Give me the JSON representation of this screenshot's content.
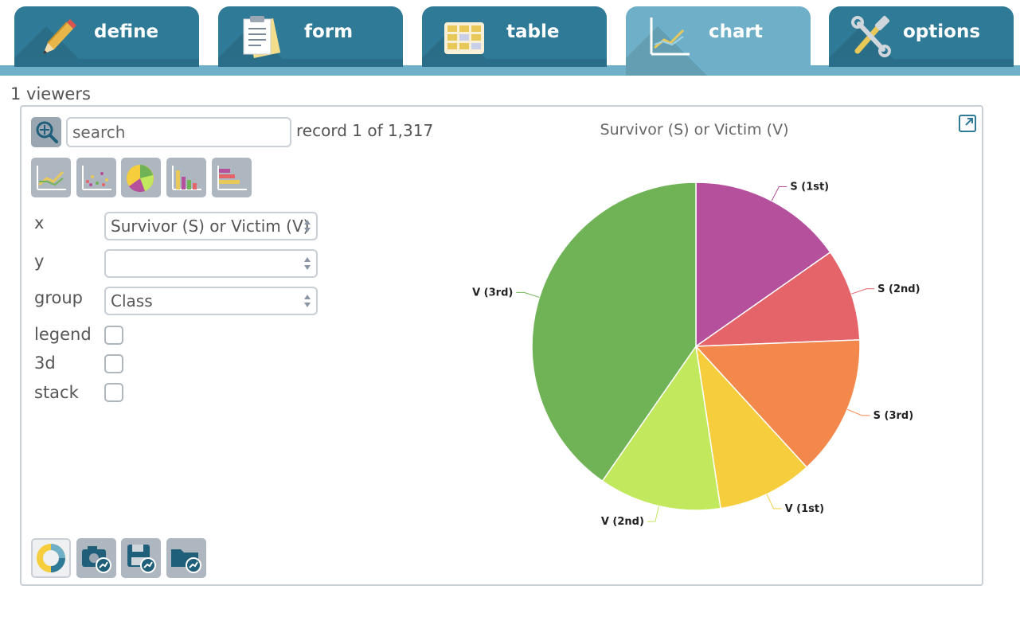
{
  "tabs": [
    {
      "label": "define",
      "icon": "pencil-icon"
    },
    {
      "label": "form",
      "icon": "form-icon"
    },
    {
      "label": "table",
      "icon": "table-icon"
    },
    {
      "label": "chart",
      "icon": "chart-icon",
      "active": true
    },
    {
      "label": "options",
      "icon": "tools-icon"
    }
  ],
  "viewers": "1 viewers",
  "search": {
    "placeholder": "search"
  },
  "record": "record 1 of 1,317",
  "chart_type_buttons": [
    "line-chart-icon",
    "scatter-chart-icon",
    "pie-chart-icon",
    "bar-chart-icon",
    "horizontal-bar-chart-icon"
  ],
  "fields": {
    "x": {
      "label": "x",
      "value": "Survivor (S) or Victim (V)"
    },
    "y": {
      "label": "y",
      "value": ""
    },
    "group": {
      "label": "group",
      "value": "Class"
    },
    "legend": {
      "label": "legend",
      "checked": false
    },
    "three_d": {
      "label": "3d",
      "checked": false
    },
    "stack": {
      "label": "stack",
      "checked": false
    }
  },
  "bottom_tools": [
    "donut-icon",
    "camera-icon",
    "save-icon",
    "folder-icon"
  ],
  "colors": {
    "tab": "#2f7a97",
    "tab_active": "#6fb0c8"
  },
  "chart_data": {
    "type": "pie",
    "title": "Survivor (S) or Victim (V)",
    "slices": [
      {
        "label": "S (1st)",
        "value": 200,
        "color": "#b5509c"
      },
      {
        "label": "S (2nd)",
        "value": 119,
        "color": "#e4646a"
      },
      {
        "label": "S (3rd)",
        "value": 181,
        "color": "#f2884c"
      },
      {
        "label": "V (1st)",
        "value": 123,
        "color": "#f6ce3d"
      },
      {
        "label": "V (2nd)",
        "value": 158,
        "color": "#c2e85e"
      },
      {
        "label": "V (3rd)",
        "value": 528,
        "color": "#6fb356"
      }
    ],
    "legend": false
  }
}
